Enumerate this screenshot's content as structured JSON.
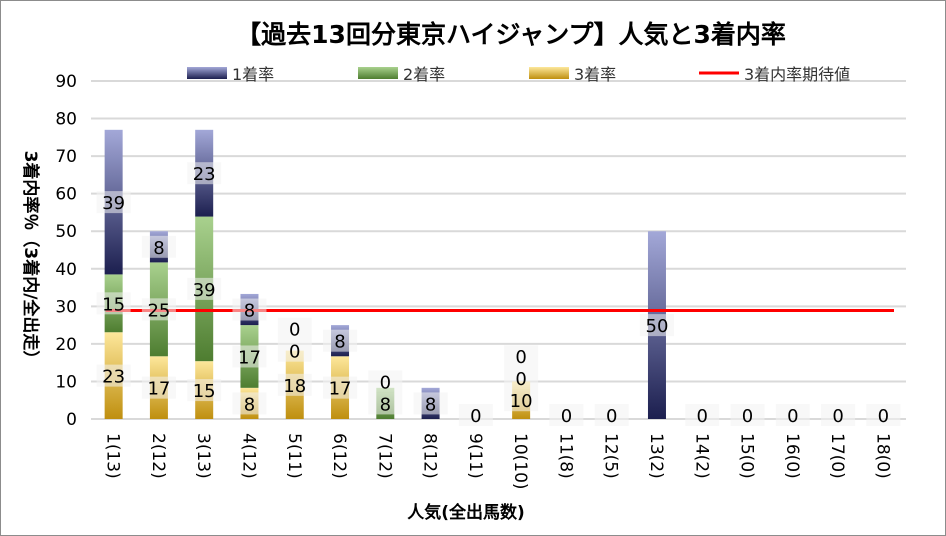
{
  "chart_data": {
    "type": "bar",
    "stacked": true,
    "title": "【過去13回分東京ハイジャンプ】人気と3着内率",
    "xlabel": "人気(全出馬数)",
    "ylabel": "3着内率％（3着内/全出走）",
    "ylim": [
      0,
      90
    ],
    "yticks": [
      0,
      10,
      20,
      30,
      40,
      50,
      60,
      70,
      80,
      90
    ],
    "grid": true,
    "legend_placement": "top",
    "categories": [
      "1(13)",
      "2(12)",
      "3(13)",
      "4(12)",
      "5(11)",
      "6(12)",
      "7(12)",
      "8(12)",
      "9(11)",
      "10(10)",
      "11(8)",
      "12(5)",
      "13(2)",
      "14(2)",
      "15(0)",
      "16(0)",
      "17(0)",
      "18(0)"
    ],
    "series": [
      {
        "name": "3着率",
        "values": [
          23.1,
          16.7,
          15.4,
          8.3,
          18.2,
          16.7,
          0,
          0,
          0,
          10,
          0,
          0,
          0,
          0,
          0,
          0,
          0,
          0
        ],
        "color_top": "#fde79b",
        "color_bottom": "#bf8f0f"
      },
      {
        "name": "2着率",
        "values": [
          15.4,
          25,
          38.5,
          16.7,
          0,
          0,
          8.3,
          0,
          0,
          0,
          0,
          0,
          0,
          0,
          0,
          0,
          0,
          0
        ],
        "color_top": "#a9d18e",
        "color_bottom": "#4e7d30"
      },
      {
        "name": "1着率",
        "values": [
          38.5,
          8.3,
          23.1,
          8.3,
          0,
          8.3,
          0,
          8.3,
          0,
          0,
          0,
          0,
          50,
          0,
          0,
          0,
          0,
          0
        ],
        "color_top": "#a3a8d8",
        "color_bottom": "#1c1f4f"
      }
    ],
    "reference_line": {
      "name": "3着内率期待値",
      "value": 28.9,
      "color": "#ff0000"
    }
  }
}
